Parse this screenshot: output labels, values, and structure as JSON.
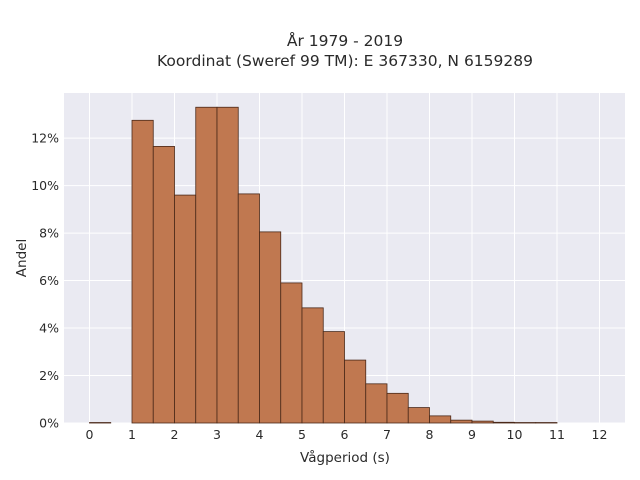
{
  "chart_data": {
    "type": "bar",
    "title_line1": "År 1979 - 2019",
    "title_line2": "Koordinat (Sweref 99 TM): E 367330, N 6159289",
    "xlabel": "Vågperiod (s)",
    "ylabel": "Andel",
    "xlim": [
      -0.6,
      12.6
    ],
    "ylim": [
      0,
      13.9
    ],
    "x_ticks": [
      0,
      1,
      2,
      3,
      4,
      5,
      6,
      7,
      8,
      9,
      10,
      11,
      12
    ],
    "y_ticks": [
      0,
      2,
      4,
      6,
      8,
      10,
      12
    ],
    "y_tick_labels": [
      "0%",
      "2%",
      "4%",
      "6%",
      "8%",
      "10%",
      "12%"
    ],
    "bin_width": 0.5,
    "bins": [
      {
        "start": 0.0,
        "value": 0.02
      },
      {
        "start": 1.0,
        "value": 12.75
      },
      {
        "start": 1.5,
        "value": 11.65
      },
      {
        "start": 2.0,
        "value": 9.6
      },
      {
        "start": 2.5,
        "value": 13.3
      },
      {
        "start": 3.0,
        "value": 13.3
      },
      {
        "start": 3.5,
        "value": 9.65
      },
      {
        "start": 4.0,
        "value": 8.05
      },
      {
        "start": 4.5,
        "value": 5.9
      },
      {
        "start": 5.0,
        "value": 4.85
      },
      {
        "start": 5.5,
        "value": 3.85
      },
      {
        "start": 6.0,
        "value": 2.65
      },
      {
        "start": 6.5,
        "value": 1.65
      },
      {
        "start": 7.0,
        "value": 1.25
      },
      {
        "start": 7.5,
        "value": 0.65
      },
      {
        "start": 8.0,
        "value": 0.3
      },
      {
        "start": 8.5,
        "value": 0.12
      },
      {
        "start": 9.0,
        "value": 0.08
      },
      {
        "start": 9.5,
        "value": 0.03
      },
      {
        "start": 10.0,
        "value": 0.02
      },
      {
        "start": 10.5,
        "value": 0.02
      }
    ],
    "grid": true,
    "bar_color": "#c07850",
    "bar_edge_color": "#4a2818",
    "plot_bg": "#eaeaf2",
    "grid_color": "#ffffff"
  }
}
